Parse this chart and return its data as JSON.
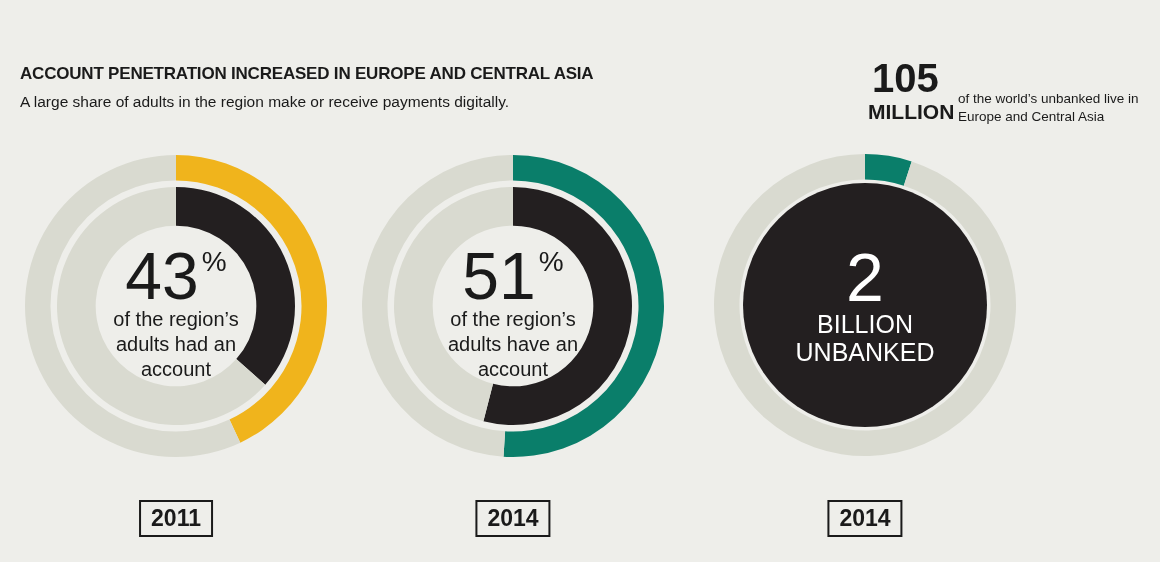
{
  "chart_data": [
    {
      "type": "donut",
      "title": "ACCOUNT PENETRATION INCREASED IN EUROPE AND CENTRAL ASIA",
      "subtitle": "A large share of adults in the region make or receive payments digitally.",
      "xlabel": "2011",
      "categories": [
        null,
        null
      ],
      "series": [
        {
          "values": [
            43,
            57
          ],
          "colors": [
            "#f0b41c",
            "#d9dad0"
          ],
          "value_labels": [
            "43$^{%}$",
            null
          ]
        },
        {
          "values": [
            36.5,
            63.5
          ],
          "colors": [
            "#231f20",
            "#d9dad0"
          ]
        }
      ],
      "annotations": [
        "of the region’s adults had an account"
      ]
    },
    {
      "type": "donut",
      "xlabel": "2014",
      "categories": [
        null,
        null
      ],
      "series": [
        {
          "values": [
            51,
            49
          ],
          "colors": [
            "#0a7e6a",
            "#d9dad0"
          ],
          "value_labels": [
            "51$^{%}$",
            null
          ]
        },
        {
          "values": [
            54,
            46
          ],
          "colors": [
            "#231f20",
            "#d9dad0"
          ]
        }
      ],
      "annotations": [
        "of the region’s adults have an account"
      ]
    },
    {
      "type": "donut",
      "xlabel": "2014",
      "categories": [
        null,
        null
      ],
      "series": [
        {
          "values": [
            5,
            95
          ],
          "colors": [
            "#0a7e6a",
            "#d9dad0"
          ]
        }
      ],
      "annotations": [
        "2",
        "BILLION UNBANKED",
        "105",
        "MILLION",
        "of the world’s unbanked live in Europe and Central Asia"
      ]
    }
  ]
}
